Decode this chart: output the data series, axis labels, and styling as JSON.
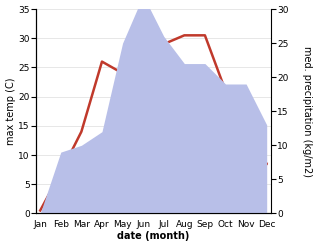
{
  "months": [
    "Jan",
    "Feb",
    "Mar",
    "Apr",
    "May",
    "Jun",
    "Jul",
    "Aug",
    "Sep",
    "Oct",
    "Nov",
    "Dec"
  ],
  "month_positions": [
    0,
    1,
    2,
    3,
    4,
    5,
    6,
    7,
    8,
    9,
    10,
    11
  ],
  "temperature": [
    0.5,
    7,
    14,
    26,
    24,
    29,
    29,
    30.5,
    30.5,
    21,
    9,
    8.5
  ],
  "precipitation": [
    0,
    9,
    10,
    12,
    25,
    32,
    26,
    22,
    22,
    19,
    19,
    13
  ],
  "temp_color": "#c0392b",
  "precip_color": "#b8bfe8",
  "temp_ylim": [
    0,
    35
  ],
  "precip_ylim": [
    0,
    30
  ],
  "temp_yticks": [
    0,
    5,
    10,
    15,
    20,
    25,
    30,
    35
  ],
  "precip_yticks": [
    0,
    5,
    10,
    15,
    20,
    25,
    30
  ],
  "xlabel": "date (month)",
  "ylabel_left": "max temp (C)",
  "ylabel_right": "med. precipitation (kg/m2)",
  "bg_color": "#ffffff",
  "label_fontsize": 7,
  "tick_fontsize": 6.5
}
